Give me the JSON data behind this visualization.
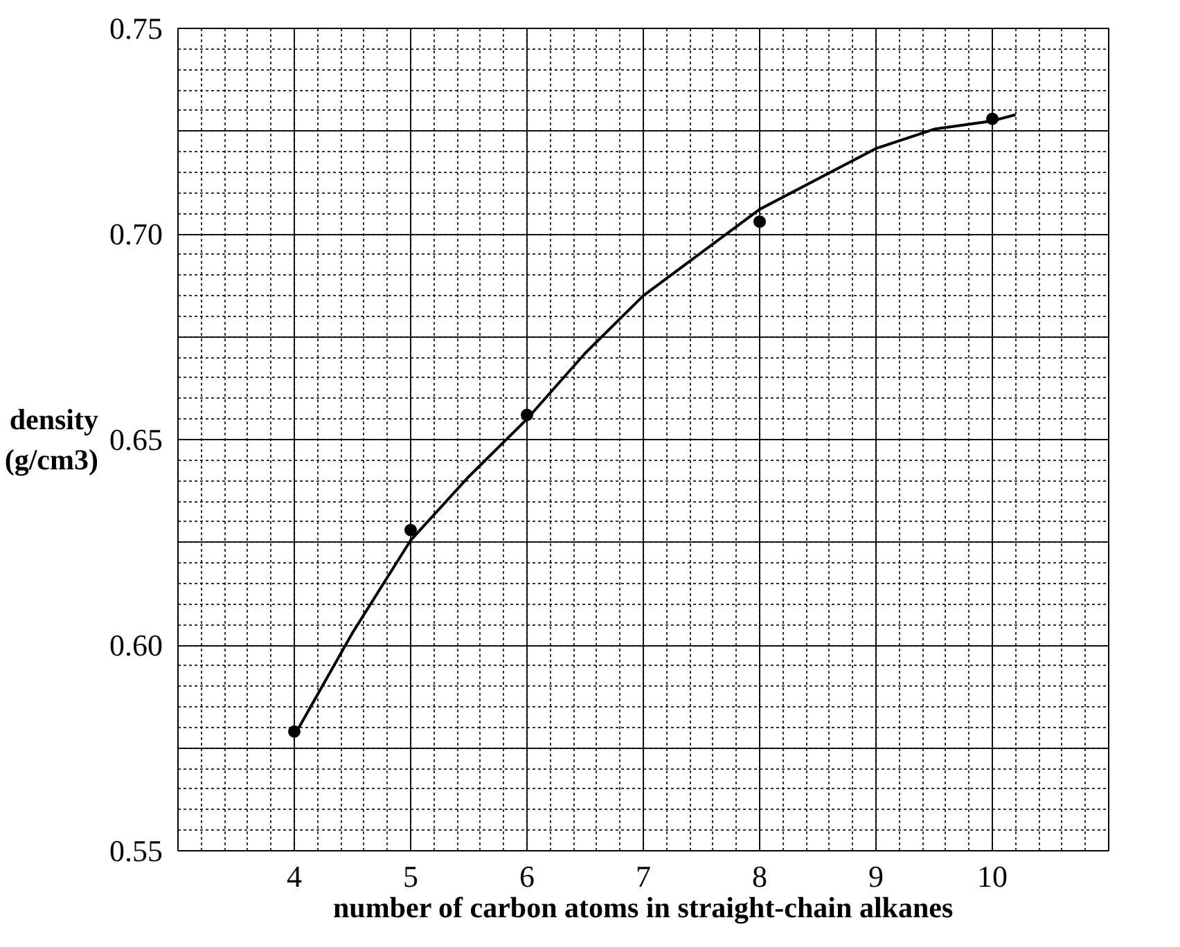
{
  "chart_data": {
    "type": "line",
    "xlabel": "number of carbon atoms in straight-chain alkanes",
    "ylabel": "density\n(g/cm3)",
    "xlim": [
      3,
      11
    ],
    "ylim": [
      0.55,
      0.75
    ],
    "xticks": [
      4,
      5,
      6,
      7,
      8,
      9,
      10
    ],
    "yticks": [
      0.55,
      {
        "value": 0.575,
        "label": null
      },
      {
        "value": 0.6,
        "label": "0.60"
      },
      {
        "value": 0.625,
        "label": null
      },
      0.65,
      {
        "value": 0.675,
        "label": null
      },
      {
        "value": 0.7,
        "label": "0.70"
      },
      {
        "value": 0.725,
        "label": null
      },
      0.75
    ],
    "grid": true,
    "series": [
      {
        "type": "scatter",
        "marker": "circle",
        "color": "#000000",
        "x": [
          4,
          5,
          6,
          8,
          10
        ],
        "values": [
          0.579,
          0.628,
          0.656,
          0.703,
          0.728
        ]
      },
      {
        "color": "#000000",
        "x": [
          4,
          4.5,
          5,
          5.5,
          6,
          6.5,
          7,
          8,
          9,
          9.5,
          10,
          10.2
        ],
        "values": [
          0.578,
          0.603,
          0.6255,
          0.641,
          0.655,
          0.671,
          0.685,
          0.706,
          0.7208,
          0.7255,
          0.7275,
          0.729
        ]
      }
    ]
  }
}
